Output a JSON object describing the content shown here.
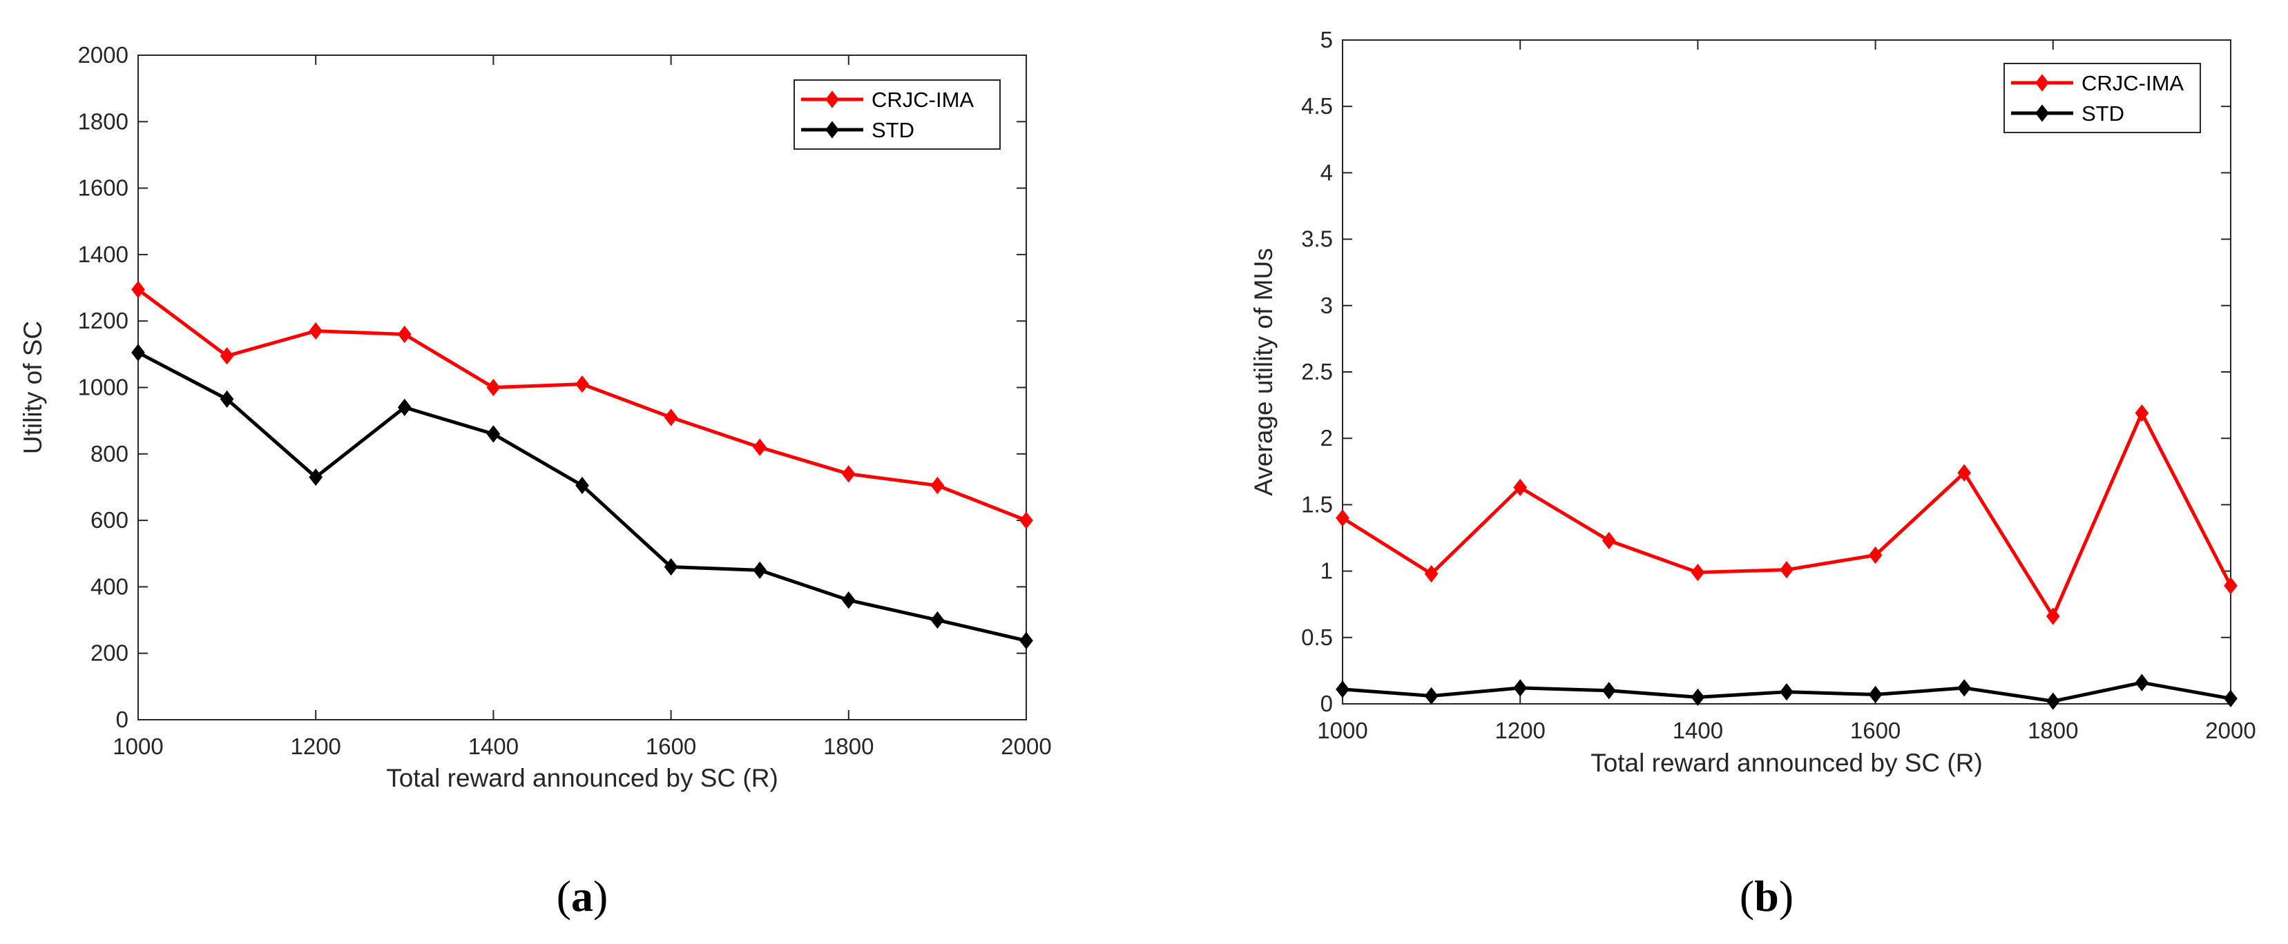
{
  "chart_data": [
    {
      "type": "line",
      "panel_label": "a",
      "title": "",
      "xlabel": "Total reward announced by SC (R)",
      "ylabel": "Utility of SC",
      "x": [
        1000,
        1100,
        1200,
        1300,
        1400,
        1500,
        1600,
        1700,
        1800,
        1900,
        2000
      ],
      "xlim": [
        1000,
        2000
      ],
      "ylim": [
        0,
        2000
      ],
      "xticks": [
        1000,
        1200,
        1400,
        1600,
        1800,
        2000
      ],
      "yticks": [
        0,
        200,
        400,
        600,
        800,
        1000,
        1200,
        1400,
        1600,
        1800,
        2000
      ],
      "xtick_labels": [
        "1000",
        "1200",
        "1400",
        "1600",
        "1800",
        "2000"
      ],
      "ytick_labels": [
        "0",
        "200",
        "400",
        "600",
        "800",
        "1000",
        "1200",
        "1400",
        "1600",
        "1800",
        "2000"
      ],
      "legend_position": "top-right",
      "series": [
        {
          "name": "CRJC-IMA",
          "color": "#ff0000",
          "values": [
            1295,
            1095,
            1170,
            1160,
            1000,
            1010,
            910,
            820,
            740,
            705,
            600
          ]
        },
        {
          "name": "STD",
          "color": "#000000",
          "values": [
            1105,
            965,
            730,
            940,
            860,
            705,
            460,
            450,
            360,
            300,
            238
          ]
        }
      ]
    },
    {
      "type": "line",
      "panel_label": "b",
      "title": "",
      "xlabel": "Total reward announced by SC (R)",
      "ylabel": "Average utility of MUs",
      "x": [
        1000,
        1100,
        1200,
        1300,
        1400,
        1500,
        1600,
        1700,
        1800,
        1900,
        2000
      ],
      "xlim": [
        1000,
        2000
      ],
      "ylim": [
        0,
        5
      ],
      "xticks": [
        1000,
        1200,
        1400,
        1600,
        1800,
        2000
      ],
      "yticks": [
        0,
        0.5,
        1,
        1.5,
        2,
        2.5,
        3,
        3.5,
        4,
        4.5,
        5
      ],
      "xtick_labels": [
        "1000",
        "1200",
        "1400",
        "1600",
        "1800",
        "2000"
      ],
      "ytick_labels": [
        "0",
        "0.5",
        "1",
        "1.5",
        "2",
        "2.5",
        "3",
        "3.5",
        "4",
        "4.5",
        "5"
      ],
      "legend_position": "top-right",
      "series": [
        {
          "name": "CRJC-IMA",
          "color": "#ff0000",
          "values": [
            1.4,
            0.98,
            1.63,
            1.23,
            0.99,
            1.01,
            1.12,
            1.74,
            0.66,
            2.19,
            0.89
          ]
        },
        {
          "name": "STD",
          "color": "#000000",
          "values": [
            0.11,
            0.06,
            0.12,
            0.1,
            0.05,
            0.09,
            0.07,
            0.12,
            0.02,
            0.16,
            0.04
          ]
        }
      ]
    }
  ]
}
